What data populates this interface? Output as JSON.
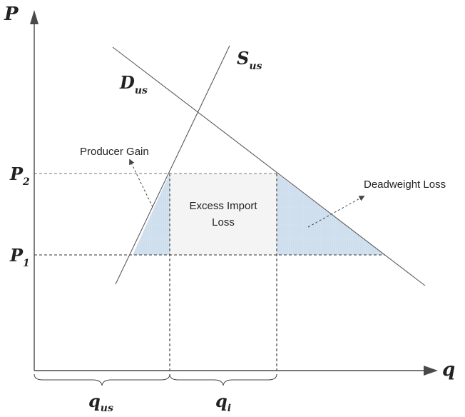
{
  "axis_labels": {
    "y": "P",
    "x": "q"
  },
  "curve_labels": {
    "supply_main": "S",
    "supply_sub": "us",
    "demand_main": "D",
    "demand_sub": "us"
  },
  "price_labels": {
    "p2_main": "P",
    "p2_sub": "2",
    "p1_main": "P",
    "p1_sub": "1"
  },
  "quantity_labels": {
    "qus_main": "q",
    "qus_sub": "us",
    "qi_main": "q",
    "qi_sub": "i"
  },
  "region_labels": {
    "producer_gain": "Producer Gain",
    "excess_line1": "Excess Import",
    "excess_line2": "Loss",
    "deadweight_loss": "Deadweight Loss"
  },
  "colors": {
    "shade": "#d3e2f0",
    "box": "#f4f4f4"
  }
}
